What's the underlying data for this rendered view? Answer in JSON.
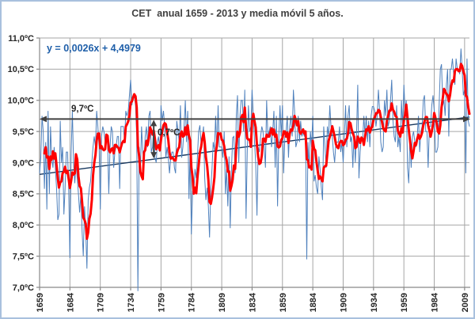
{
  "colors": {
    "annual_line": "#4f81bd",
    "moving_average": "#ff0000",
    "trend_line": "#17375e",
    "arrow": "#404040",
    "gridline": "#a6a6a6",
    "axis_line": "#898989",
    "tick_text": "#262626",
    "title_text": "#404040",
    "equation_text": "#1f5fa9",
    "border": "#a9c0de",
    "background": "#ffffff"
  },
  "chart_data": {
    "type": "line",
    "title": "CET  anual 1659 - 2013 y media móvil 5 años.",
    "x_start_year": 1659,
    "x_end_year": 2013,
    "ylim": [
      7.0,
      11.0
    ],
    "grid": true,
    "legend": "none",
    "y_tick_values": [
      7.0,
      7.5,
      8.0,
      8.5,
      9.0,
      9.5,
      10.0,
      10.5,
      11.0
    ],
    "y_tick_labels": [
      "7,0ºC",
      "7,5ºC",
      "8,0ºC",
      "8,5ºC",
      "9,0ºC",
      "9,5ºC",
      "10,0ºC",
      "10,5ºC",
      "11,0ºC"
    ],
    "x_tick_values": [
      1659,
      1684,
      1709,
      1734,
      1759,
      1784,
      1809,
      1834,
      1859,
      1884,
      1909,
      1934,
      1959,
      1984,
      2009
    ],
    "x_tick_labels": [
      "1659",
      "1684",
      "1709",
      "1734",
      "1759",
      "1784",
      "1809",
      "1834",
      "1859",
      "1884",
      "1909",
      "1934",
      "1959",
      "1984",
      "2009"
    ],
    "series": [
      {
        "name": "CET anual",
        "kind": "annual",
        "color": "#4f81bd",
        "values": [
          8.83,
          9.08,
          9.75,
          9.5,
          8.58,
          9.33,
          8.25,
          9.83,
          8.5,
          9.58,
          9.08,
          8.92,
          9.25,
          8.92,
          8.58,
          8.08,
          8.17,
          9.67,
          9.0,
          9.25,
          8.17,
          8.58,
          9.17,
          9.17,
          8.58,
          7.47,
          9.17,
          9.83,
          9.0,
          8.67,
          9.0,
          8.75,
          8.5,
          8.2,
          8.5,
          7.9,
          7.5,
          8.3,
          7.9,
          7.3,
          8.4,
          8.6,
          8.7,
          9.0,
          9.25,
          9.42,
          9.25,
          9.83,
          9.58,
          9.25,
          8.25,
          9.42,
          9.58,
          9.5,
          9.33,
          9.42,
          9.33,
          8.5,
          9.25,
          9.58,
          9.5,
          8.92,
          9.17,
          9.25,
          9.42,
          9.42,
          8.58,
          9.58,
          9.58,
          9.58,
          9.33,
          9.83,
          9.75,
          9.83,
          10.08,
          10.33,
          9.92,
          10.08,
          10.08,
          9.92,
          9.42,
          6.84,
          9.25,
          8.83,
          9.58,
          9.17,
          9.0,
          9.42,
          9.58,
          9.25,
          9.75,
          9.83,
          9.17,
          9.25,
          9.58,
          9.08,
          9.0,
          9.33,
          9.42,
          9.17,
          9.92,
          9.67,
          9.83,
          9.58,
          9.08,
          9.25,
          9.08,
          8.83,
          9.08,
          9.17,
          9.17,
          8.92,
          8.83,
          9.67,
          9.5,
          9.33,
          9.92,
          9.08,
          9.25,
          9.58,
          10.0,
          9.33,
          9.83,
          8.42,
          9.2,
          7.85,
          8.55,
          8.5,
          8.9,
          8.75,
          9.1,
          9.5,
          9.6,
          9.3,
          9.4,
          9.58,
          8.75,
          8.4,
          8.6,
          8.3,
          7.8,
          8.6,
          8.9,
          9.33,
          9.2,
          9.75,
          9.17,
          9.92,
          9.25,
          9.25,
          9.25,
          9.08,
          9.5,
          8.5,
          8.9,
          8.3,
          9.1,
          7.95,
          8.9,
          9.4,
          9.42,
          8.83,
          9.75,
          10.08,
          9.0,
          9.75,
          10.0,
          10.0,
          9.5,
          10.17,
          8.1,
          9.17,
          9.92,
          9.5,
          9.58,
          10.17,
          9.75,
          9.33,
          9.0,
          8.15,
          9.25,
          9.17,
          9.42,
          9.58,
          9.5,
          9.25,
          8.92,
          10.0,
          9.42,
          9.5,
          9.58,
          9.25,
          9.5,
          9.83,
          8.92,
          9.75,
          8.3,
          9.42,
          9.92,
          9.42,
          9.92,
          8.83,
          9.42,
          9.5,
          9.75,
          9.08,
          9.58,
          9.75,
          9.42,
          10.17,
          9.83,
          9.25,
          9.33,
          9.75,
          9.33,
          9.67,
          9.42,
          9.5,
          9.42,
          9.5,
          7.45,
          9.33,
          8.92,
          9.5,
          9.25,
          9.75,
          8.7,
          8.8,
          8.6,
          8.5,
          9.1,
          8.9,
          8.6,
          8.4,
          9.58,
          9.25,
          8.92,
          9.58,
          9.42,
          9.92,
          9.58,
          9.42,
          9.17,
          9.0,
          9.33,
          9.33,
          9.33,
          9.58,
          9.17,
          9.33,
          9.0,
          9.42,
          9.92,
          9.25,
          9.75,
          9.92,
          9.33,
          9.42,
          8.92,
          9.5,
          9.0,
          9.42,
          10.25,
          8.75,
          9.17,
          9.42,
          9.33,
          9.75,
          9.42,
          9.75,
          9.33,
          9.67,
          9.25,
          9.75,
          9.9,
          9.9,
          9.83,
          9.58,
          9.75,
          10.17,
          9.83,
          9.33,
          9.17,
          9.25,
          10.0,
          9.75,
          10.17,
          9.58,
          9.67,
          10.0,
          10.33,
          9.67,
          9.42,
          9.33,
          9.92,
          9.25,
          9.42,
          9.17,
          10.0,
          9.58,
          10.25,
          9.83,
          10.0,
          8.92,
          8.67,
          9.42,
          8.92,
          9.42,
          9.5,
          9.33,
          9.25,
          9.42,
          9.75,
          9.17,
          9.5,
          9.58,
          10.0,
          10.08,
          9.5,
          9.5,
          8.92,
          9.58,
          9.58,
          9.92,
          10.08,
          9.83,
          9.17,
          9.17,
          9.25,
          9.92,
          10.5,
          10.58,
          9.92,
          10.0,
          9.75,
          10.25,
          10.5,
          9.42,
          10.5,
          10.5,
          10.67,
          10.42,
          10.25,
          10.67,
          10.5,
          10.5,
          10.42,
          10.83,
          10.5,
          10.08,
          10.17,
          8.83,
          10.67,
          9.67,
          9.58
        ]
      },
      {
        "name": "media móvil 5 años",
        "kind": "moving_average",
        "window": 5,
        "color": "#ff0000"
      }
    ],
    "trendline": {
      "equation_label": "y = 0,0026x + 4,4979",
      "slope": 0.0026,
      "intercept": 4.4979,
      "x_basis": "year"
    },
    "annotations": [
      {
        "id": "range-arrow",
        "label": "9,7ºC",
        "level": 9.7,
        "style": "horizontal-double-arrow"
      },
      {
        "id": "delta-arrow",
        "label": "0,7ºC",
        "year": 1753,
        "from_level": 9.7,
        "to": "trendline",
        "style": "vertical-double-arrow"
      }
    ]
  }
}
